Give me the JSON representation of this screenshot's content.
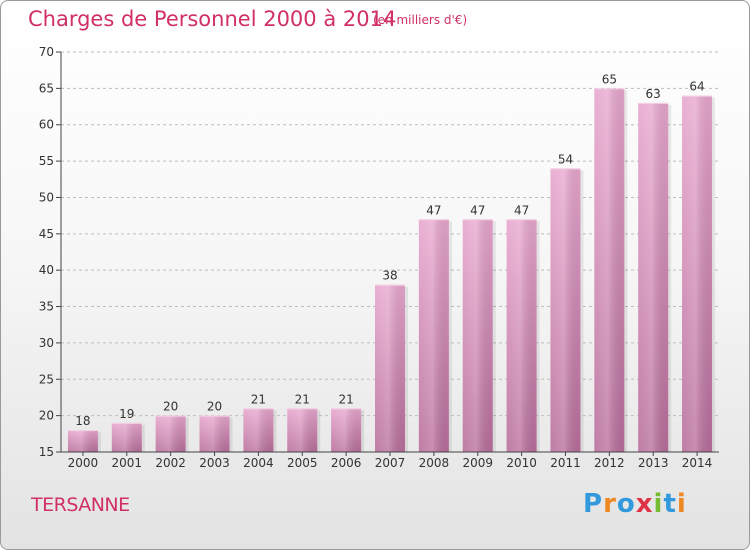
{
  "title": "Charges de Personnel 2000 à 2014",
  "subtitle": "(en milliers d'€)",
  "place": "TERSANNE",
  "logo": {
    "text": "Proxiti",
    "letters": [
      {
        "ch": "P",
        "color": "#3399dd"
      },
      {
        "ch": "r",
        "color": "#ee8822"
      },
      {
        "ch": "o",
        "color": "#3399dd"
      },
      {
        "ch": "x",
        "color": "#dd3344"
      },
      {
        "ch": "i",
        "color": "#77bb33"
      },
      {
        "ch": "t",
        "color": "#3399dd"
      },
      {
        "ch": "i",
        "color": "#ee8822"
      }
    ]
  },
  "colors": {
    "bar_top": "#e8a7cf",
    "bar_bottom": "#b86e9b",
    "title": "#d03064",
    "axis": "#444444"
  },
  "chart_data": {
    "type": "bar",
    "title": "Charges de Personnel 2000 à 2014",
    "subtitle": "(en milliers d'€)",
    "categories": [
      "2000",
      "2001",
      "2002",
      "2003",
      "2004",
      "2005",
      "2006",
      "2007",
      "2008",
      "2009",
      "2010",
      "2011",
      "2012",
      "2013",
      "2014"
    ],
    "values": [
      18,
      19,
      20,
      20,
      21,
      21,
      21,
      38,
      47,
      47,
      47,
      54,
      65,
      63,
      64
    ],
    "ylim": [
      15,
      70
    ],
    "yticks": [
      15,
      20,
      25,
      30,
      35,
      40,
      45,
      50,
      55,
      60,
      65,
      70
    ],
    "grid": true
  }
}
